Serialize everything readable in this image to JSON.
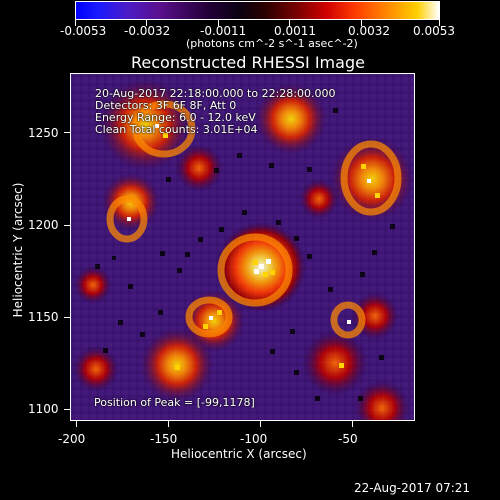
{
  "colorbar": {
    "tick_labels": [
      "-0.0053",
      "-0.0032",
      "-0.0011",
      "0.0011",
      "0.0032",
      "0.0053"
    ],
    "unit_label": "(photons cm^-2 s^-1 asec^-2)"
  },
  "plot": {
    "title": "Reconstructed RHESSI Image",
    "info_lines": [
      "20-Aug-2017 22:18:00.000 to 22:28:00.000",
      "Detectors: 3F 6F 8F, Att 0",
      "Energy Range: 6.0 - 12.0 keV",
      "Clean     Total counts: 3.01E+04"
    ],
    "peak_label": "Position of Peak = [-99,1178]",
    "x_axis_label": "Heliocentric X (arcsec)",
    "y_axis_label": "Heliocentric Y (arcsec)",
    "x_ticks": [
      "-200",
      "-150",
      "-100",
      "-50"
    ],
    "y_ticks": [
      "1250",
      "1200",
      "1150",
      "1100"
    ]
  },
  "footer": {
    "timestamp": "22-Aug-2017 07:21"
  },
  "colors": {
    "background": "#000000",
    "text": "#ffffff",
    "peak_palette": [
      "#000000",
      "#2c002d",
      "#5a0f8d",
      "#6e3fc4",
      "#b00000",
      "#ff3c00",
      "#ff9a00",
      "#ffd400",
      "#ffffff"
    ]
  }
}
